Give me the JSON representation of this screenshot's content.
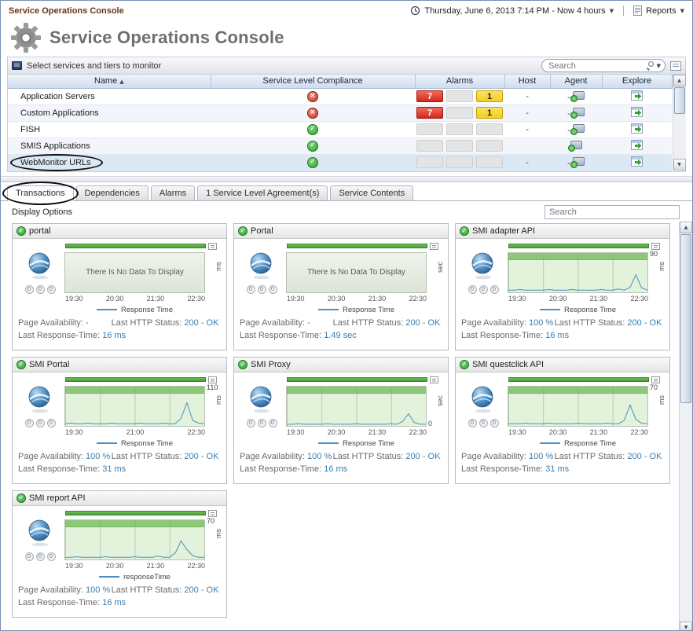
{
  "colors": {
    "title_brown": "#6a3416",
    "value_blue": "#3a7dae",
    "line_blue": "#4a90c8",
    "ok_green": "#2f9e2f",
    "error_red": "#c9301f",
    "alarm_yellow": "#f2cf1d",
    "strip_green": "#4a9e38"
  },
  "page": {
    "top_title": "Service Operations Console",
    "main_title": "Service Operations Console",
    "datetime": "Thursday, June 6, 2013 7:14 PM - Now 4 hours",
    "reports_label": "Reports"
  },
  "services_panel": {
    "header_label": "Select services and tiers to monitor",
    "search_placeholder": "Search",
    "columns": {
      "name": "Name",
      "compliance": "Service Level Compliance",
      "alarms": "Alarms",
      "host": "Host",
      "agent": "Agent",
      "explore": "Explore"
    },
    "rows": [
      {
        "name": "Application Servers",
        "compliance": "error",
        "alarms": {
          "fatal": "7",
          "critical": "",
          "warning": "1"
        },
        "host": "-",
        "agent": "-"
      },
      {
        "name": "Custom Applications",
        "compliance": "error",
        "alarms": {
          "fatal": "7",
          "critical": "",
          "warning": "1"
        },
        "host": "-",
        "agent": "-"
      },
      {
        "name": "FISH",
        "compliance": "ok",
        "alarms": {
          "fatal": "",
          "critical": "",
          "warning": ""
        },
        "host": "-",
        "agent": "-"
      },
      {
        "name": "SMIS Applications",
        "compliance": "ok",
        "alarms": {
          "fatal": "",
          "critical": "",
          "warning": ""
        },
        "host": "",
        "agent": "icon"
      },
      {
        "name": "WebMonitor URLs",
        "compliance": "ok",
        "alarms": {
          "fatal": "",
          "critical": "",
          "warning": ""
        },
        "host": "-",
        "agent": "-",
        "selected": true,
        "circled": true
      }
    ]
  },
  "tabs": [
    {
      "label": "Transactions",
      "selected": true,
      "circled": true
    },
    {
      "label": "Dependencies"
    },
    {
      "label": "Alarms"
    },
    {
      "label": "1 Service Level Agreement(s)"
    },
    {
      "label": "Service Contents"
    }
  ],
  "display_options": "Display Options",
  "cards_search_placeholder": "Search",
  "card_labels": {
    "availability": "Page Availability:",
    "http_status": "Last HTTP Status:",
    "response_time": "Last Response-Time:",
    "no_data": "There Is No Data To Display"
  },
  "cards": [
    {
      "name": "portal",
      "status": "ok",
      "no_data": true,
      "unit": "ms",
      "y_top": "",
      "y_bottom": "",
      "x_labels": [
        "19:30",
        "20:30",
        "21:30",
        "22:30"
      ],
      "legend": "Response Time",
      "availability": "-",
      "http_status": "200 - OK",
      "response_time": "16 ms",
      "alarm_counts": [
        "0",
        "0",
        "0"
      ],
      "series": []
    },
    {
      "name": "Portal",
      "status": "ok",
      "no_data": true,
      "unit": "sec",
      "y_top": "",
      "y_bottom": "",
      "x_labels": [
        "19:30",
        "20:30",
        "21:30",
        "22:30"
      ],
      "legend": "Response Time",
      "availability": "-",
      "http_status": "200 - OK",
      "response_time": "1.49 sec",
      "alarm_counts": [
        "0",
        "0",
        "0"
      ],
      "series": []
    },
    {
      "name": "SMI adapter API",
      "status": "ok",
      "no_data": false,
      "unit": "ms",
      "y_top": "90",
      "y_bottom": "",
      "x_labels": [
        "19:30",
        "20:30",
        "21:30",
        "22:30"
      ],
      "legend": "Response Time",
      "availability": "100 %",
      "http_status": "200 - OK",
      "response_time": "16 ms",
      "alarm_counts": [
        "0",
        "0",
        "0"
      ],
      "series": [
        4,
        4,
        5,
        4,
        4,
        4,
        4,
        5,
        4,
        4,
        4,
        5,
        4,
        4,
        4,
        4,
        5,
        4,
        4,
        6,
        4,
        9,
        32,
        8,
        4
      ]
    },
    {
      "name": "SMI Portal",
      "status": "ok",
      "no_data": false,
      "unit": "ms",
      "y_top": "110",
      "y_bottom": "",
      "x_labels": [
        "19:30",
        "21:00",
        "22:30"
      ],
      "legend": "Response Time",
      "availability": "100 %",
      "http_status": "200 - OK",
      "response_time": "31 ms",
      "alarm_counts": [
        "0",
        "0",
        "0"
      ],
      "series": [
        4,
        5,
        4,
        4,
        5,
        4,
        4,
        4,
        5,
        4,
        4,
        4,
        4,
        5,
        4,
        4,
        4,
        5,
        4,
        4,
        14,
        42,
        10,
        5,
        4
      ]
    },
    {
      "name": "SMI Proxy",
      "status": "ok",
      "no_data": false,
      "unit": "sec",
      "y_top": "",
      "y_bottom": "0",
      "x_labels": [
        "19:30",
        "20:30",
        "21:30",
        "22:30"
      ],
      "legend": "Response Time",
      "availability": "100 %",
      "http_status": "200 - OK",
      "response_time": "16 ms",
      "alarm_counts": [
        "0",
        "0",
        "0"
      ],
      "series": [
        3,
        3,
        4,
        3,
        3,
        3,
        3,
        4,
        3,
        3,
        3,
        3,
        4,
        3,
        3,
        3,
        3,
        3,
        4,
        3,
        8,
        22,
        6,
        3,
        3
      ]
    },
    {
      "name": "SMI questclick API",
      "status": "ok",
      "no_data": false,
      "unit": "ms",
      "y_top": "70",
      "y_bottom": "",
      "x_labels": [
        "19:30",
        "20:30",
        "21:30",
        "22:30"
      ],
      "legend": "Response Time",
      "availability": "100 %",
      "http_status": "200 - OK",
      "response_time": "31 ms",
      "alarm_counts": [
        "0",
        "0",
        "0"
      ],
      "series": [
        4,
        4,
        4,
        5,
        4,
        4,
        4,
        5,
        4,
        4,
        4,
        4,
        5,
        4,
        4,
        4,
        4,
        5,
        4,
        4,
        10,
        38,
        12,
        5,
        4
      ]
    },
    {
      "name": "SMI report API",
      "status": "ok",
      "no_data": false,
      "unit": "ms",
      "y_top": "70",
      "y_bottom": "",
      "x_labels": [
        "19:30",
        "20:30",
        "21:30",
        "22:30"
      ],
      "legend": "responseTime",
      "availability": "100 %",
      "http_status": "200 - OK",
      "response_time": "16 ms",
      "alarm_counts": [
        "0",
        "0",
        "0"
      ],
      "series": [
        4,
        4,
        5,
        4,
        4,
        4,
        4,
        5,
        4,
        4,
        4,
        4,
        5,
        4,
        4,
        4,
        6,
        4,
        4,
        12,
        34,
        18,
        7,
        4,
        4
      ]
    }
  ]
}
